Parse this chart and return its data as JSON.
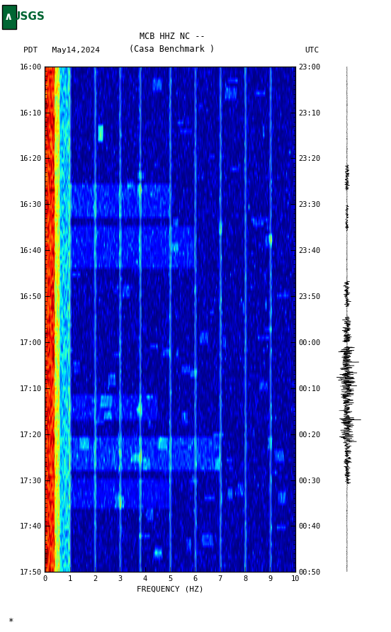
{
  "title_line1": "MCB HHZ NC --",
  "title_line2": "(Casa Benchmark )",
  "left_label": "PDT   May14,2024",
  "right_label": "UTC",
  "left_yticks": [
    "16:00",
    "16:10",
    "16:20",
    "16:30",
    "16:40",
    "16:50",
    "17:00",
    "17:10",
    "17:20",
    "17:30",
    "17:40",
    "17:50"
  ],
  "right_yticks": [
    "23:00",
    "23:10",
    "23:20",
    "23:30",
    "23:40",
    "23:50",
    "00:00",
    "00:10",
    "00:20",
    "00:30",
    "00:40",
    "00:50"
  ],
  "xticks": [
    0,
    1,
    2,
    3,
    4,
    5,
    6,
    7,
    8,
    9,
    10
  ],
  "xlabel": "FREQUENCY (HZ)",
  "freq_max": 10.0,
  "fig_bg": "#ffffff",
  "usgs_color": "#006633",
  "vertical_lines_x": [
    1.0,
    2.0,
    3.0,
    3.82,
    5.0,
    6.0,
    7.0,
    8.0,
    9.0
  ],
  "colormap": "jet",
  "n_time": 120,
  "n_freq": 300,
  "seed": 12345
}
